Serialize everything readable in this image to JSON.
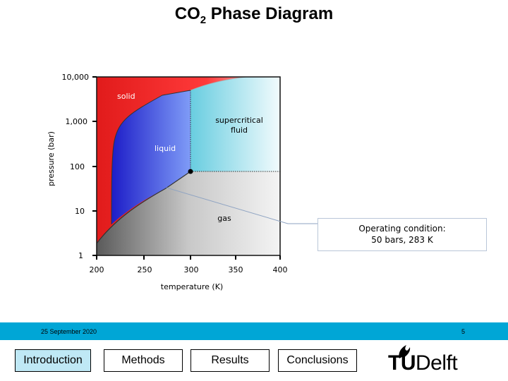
{
  "slide": {
    "title_main": "CO",
    "title_sub": "2",
    "title_rest": " Phase Diagram"
  },
  "chart_data": {
    "type": "phase-diagram",
    "xlabel": "temperature (K)",
    "ylabel": "pressure (bar)",
    "x_ticks": [
      "200",
      "250",
      "300",
      "350",
      "400"
    ],
    "y_ticks": [
      "10,000",
      "1,000",
      "100",
      "10",
      "1"
    ],
    "y_scale": "log",
    "xlim": [
      200,
      400
    ],
    "ylim": [
      1,
      10000
    ],
    "regions": [
      "solid",
      "liquid",
      "supercritical fluid",
      "gas"
    ],
    "critical_point": {
      "x": 304,
      "y": 74
    },
    "region_colors": {
      "solid": "#e42020",
      "liquid": "#2a2ad4",
      "supercritical": "#7ad4e6",
      "gas": "#a0a0a0"
    }
  },
  "diagram_labels": {
    "solid": "solid",
    "liquid": "liquid",
    "supercritical_1": "supercritical",
    "supercritical_2": "fluid",
    "gas": "gas"
  },
  "callout": {
    "line1": "Operating condition:",
    "line2": "50 bars, 283 K"
  },
  "footer": {
    "date": "25 September 2020",
    "page": "5",
    "bar_color": "#00a6d6"
  },
  "nav": {
    "introduction": "Introduction",
    "methods": "Methods",
    "results": "Results",
    "conclusions": "Conclusions"
  },
  "logo": {
    "tu": "TU",
    "delft": "Delft"
  }
}
